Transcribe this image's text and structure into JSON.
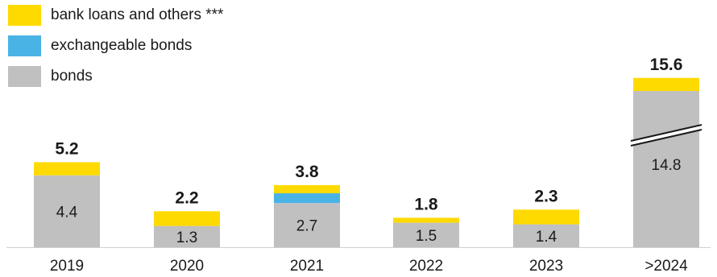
{
  "chart_data": {
    "type": "bar",
    "stacked": true,
    "categories": [
      "2019",
      "2020",
      "2021",
      "2022",
      "2023",
      ">2024"
    ],
    "series": [
      {
        "name": "bonds",
        "color": "#c0c0c0",
        "values": [
          4.4,
          1.3,
          2.7,
          1.5,
          1.4,
          14.8
        ]
      },
      {
        "name": "exchangeable bonds",
        "color": "#4ab3e6",
        "values": [
          0,
          0,
          0.6,
          0,
          0,
          0
        ]
      },
      {
        "name": "bank loans and others ***",
        "color": "#ffda00",
        "values": [
          0.8,
          0.9,
          0.5,
          0.3,
          0.9,
          0.8
        ]
      }
    ],
    "totals": [
      5.2,
      2.2,
      3.8,
      1.8,
      2.3,
      15.6
    ],
    "segment_labels": [
      "4.4",
      "1.3",
      "2.7",
      "1.5",
      "1.4",
      "14.8"
    ],
    "total_labels": [
      "5.2",
      "2.2",
      "3.8",
      "1.8",
      "2.3",
      "15.6"
    ],
    "axis_break_category": ">2024",
    "legend_position": "top-left",
    "grid": false
  },
  "legend": [
    {
      "label": "bank loans and others ***",
      "color": "#ffda00"
    },
    {
      "label": "exchangeable bonds",
      "color": "#4ab3e6"
    },
    {
      "label": "bonds",
      "color": "#c0c0c0"
    }
  ]
}
